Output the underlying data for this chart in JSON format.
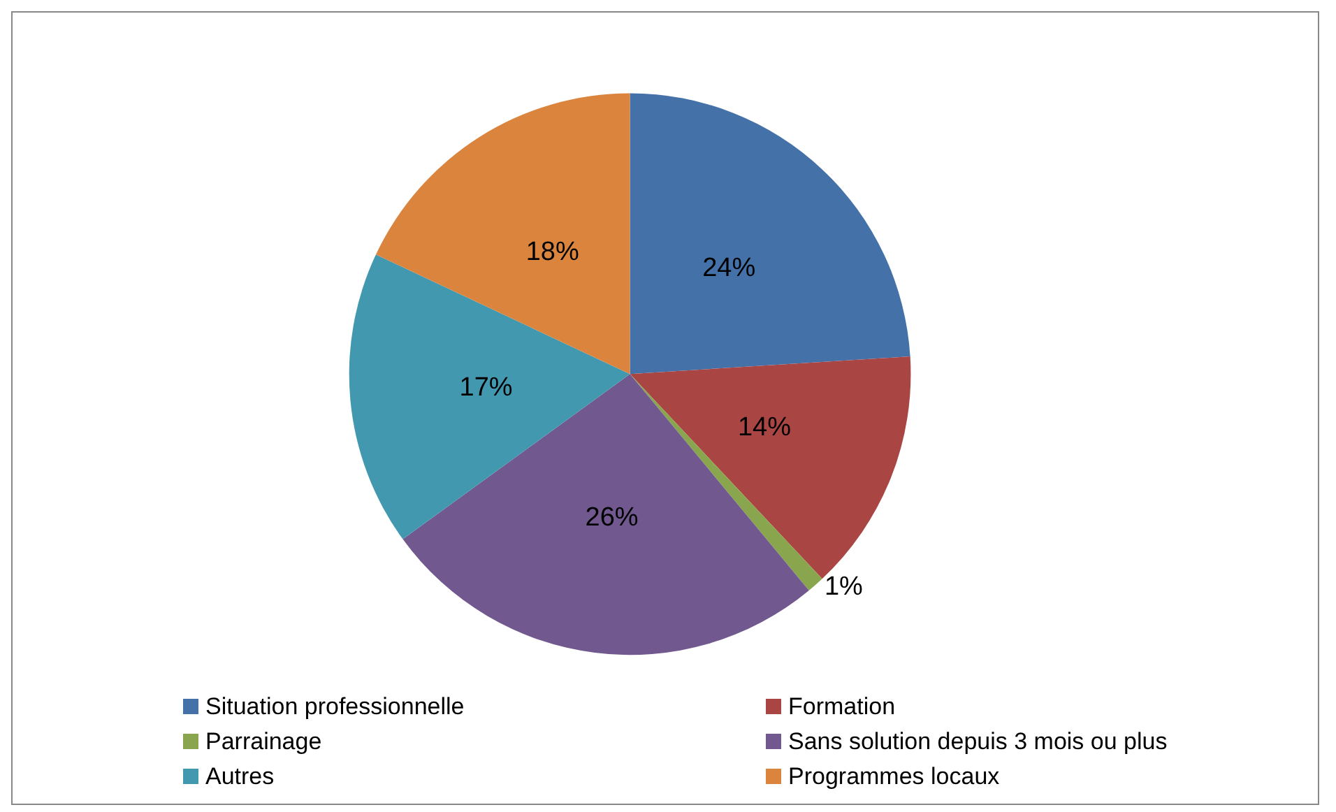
{
  "chart_data": {
    "type": "pie",
    "categories": [
      "Situation professionnelle",
      "Formation",
      "Parrainage",
      "Sans solution depuis 3 mois ou plus",
      "Autres",
      "Programmes locaux"
    ],
    "values": [
      24,
      14,
      1,
      26,
      17,
      18
    ],
    "value_labels": [
      "24%",
      "14%",
      "1%",
      "26%",
      "17%",
      "18%"
    ],
    "colors": [
      "#4472a8",
      "#a94644",
      "#89a54e",
      "#71588f",
      "#4198af",
      "#db843d"
    ],
    "legend": "bottom"
  }
}
